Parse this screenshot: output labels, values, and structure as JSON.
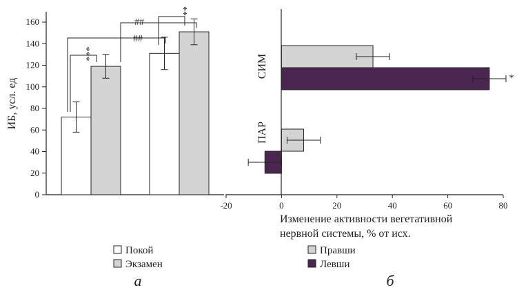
{
  "chart_data": [
    {
      "type": "bar",
      "panel_label": "а",
      "ylabel": "ИБ, усл. ед",
      "ylim": [
        0,
        160
      ],
      "yticks": [
        0,
        20,
        40,
        60,
        80,
        100,
        120,
        140,
        160
      ],
      "groups": 2,
      "series": [
        {
          "name": "Покой",
          "color": "#ffffff",
          "values": [
            72,
            131
          ],
          "errors": [
            14,
            15
          ]
        },
        {
          "name": "Экзамен",
          "color": "#d3d3d3",
          "values": [
            119,
            151
          ],
          "errors": [
            11,
            12
          ]
        }
      ],
      "annotations": [
        "***",
        "**",
        "##",
        "##"
      ]
    },
    {
      "type": "bar",
      "orientation": "horizontal",
      "panel_label": "б",
      "xlabel_line1": "Изменение активности вегетативной",
      "xlabel_line2": "нервной системы, % от исх.",
      "xlim": [
        -20,
        80
      ],
      "xticks": [
        "-20",
        "0",
        "20",
        "40",
        "60",
        "80"
      ],
      "categories": [
        "СИМ",
        "ПАР"
      ],
      "series": [
        {
          "name": "Правши",
          "color": "#d3d3d3",
          "values": [
            33,
            8
          ],
          "errors": [
            6,
            6
          ]
        },
        {
          "name": "Левши",
          "color": "#4a2650",
          "values": [
            75,
            -6
          ],
          "errors": [
            6,
            6
          ]
        }
      ],
      "annotations": [
        "*"
      ]
    }
  ]
}
